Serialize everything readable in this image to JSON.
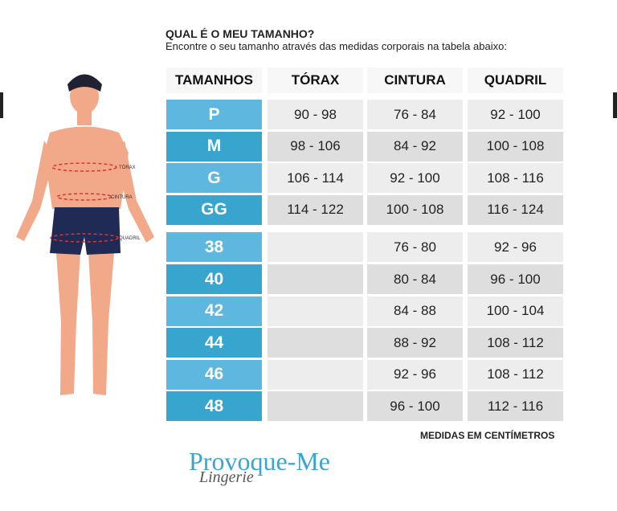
{
  "header": {
    "title": "QUAL É O MEU TAMANHO?",
    "subtitle": "Encontre o seu tamanho através das medidas corporais na tabela abaixo:"
  },
  "figure": {
    "labels": [
      "TÓRAX",
      "CINTURA",
      "QUADRIL"
    ]
  },
  "table": {
    "columns": [
      "TAMANHOS",
      "TÓRAX",
      "CINTURA",
      "QUADRIL"
    ],
    "rows": [
      [
        "P",
        "90 - 98",
        "76 - 84",
        "92 - 100"
      ],
      [
        "M",
        "98 - 106",
        "84 - 92",
        "100 - 108"
      ],
      [
        "G",
        "106 - 114",
        "92 - 100",
        "108 - 116"
      ],
      [
        "GG",
        "114 - 122",
        "100 - 108",
        "116 - 124"
      ],
      [
        "38",
        null,
        "76 - 80",
        "92 - 96"
      ],
      [
        "40",
        null,
        "80 - 84",
        "96 - 100"
      ],
      [
        "42",
        null,
        "84 - 88",
        "100 - 104"
      ],
      [
        "44",
        null,
        "88 - 92",
        "108 - 112"
      ],
      [
        "46",
        null,
        "92 - 96",
        "108 - 112"
      ],
      [
        "48",
        null,
        "96 - 100",
        "112 - 116"
      ]
    ]
  },
  "footer": {
    "note": "MEDIDAS EM CENTÍMETROS"
  },
  "brand": {
    "name": "Provoque-Me",
    "tagline": "Lingerie"
  }
}
